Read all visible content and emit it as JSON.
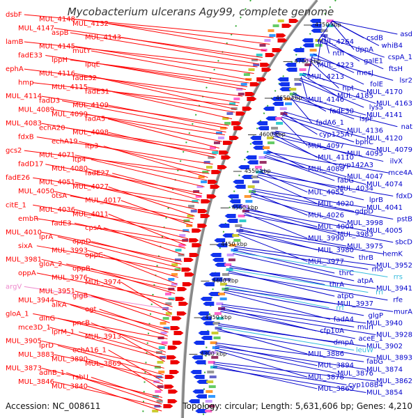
{
  "title": "Mycobacterium ulcerans Agy99, complete genome",
  "footer": {
    "accession": "Accession: NC_008611",
    "summary": "Topology: circular; Length: 5,631,606 bp; Genes: 4,210"
  },
  "colors": {
    "forward_label": "#ff0000",
    "reverse_label": "#0000cc",
    "rna_label_pink": "#ee88cc",
    "rna_label_cyan": "#33bbdd",
    "backbone": "#888888"
  },
  "ticks": [
    "4750 kbp",
    "4700 kbp",
    "4650 kbp",
    "4600 kbp",
    "4550 kbp",
    "4500 kbp",
    "4450 kbp",
    "4400 kbp",
    "4350 kbp",
    "4300 kbp"
  ],
  "left_labels": [
    "dsbF",
    "MUL_4148",
    "MUL_4132",
    "MUL_4147",
    "aspB",
    "MUL_4143",
    "lamB",
    "MUL_4145",
    "mutY",
    "fadE33",
    "lppH",
    "lpqE",
    "ephA",
    "MUL_4116",
    "fadE32",
    "hmp",
    "MUL_4115",
    "fadE31",
    "MUL_4114",
    "fadD3",
    "MUL_4109",
    "MUL_4089",
    "MUL_4099",
    "fadA5",
    "MUL_4083",
    "echA20",
    "MUL_4098",
    "fdxB",
    "echA19",
    "ltp3",
    "gcs2",
    "MUL_4071",
    "ltp4",
    "fadD17",
    "MUL_4080",
    "fadE27",
    "fadE26",
    "MUL_4051",
    "MUL_4027",
    "MUL_4050",
    "otsA",
    "MUL_4017",
    "citE_1",
    "MUL_4036",
    "MUL_4011",
    "embR",
    "fadE3",
    "cpsA",
    "MUL_4010",
    "lprA",
    "oppD",
    "sixA",
    "MUL_3993",
    "oppC",
    "MUL_3981",
    "gloA_2",
    "oppB",
    "oppA",
    "MUL_3976",
    "MUL_3974",
    "argV",
    "MUL_3951",
    "glgB",
    "MUL_3944",
    "alkA",
    "ogt",
    "gloA_1",
    "dinG",
    "pncB",
    "mce3D_1",
    "lprM_1",
    "MUL_3913",
    "MUL_3905",
    "lprD",
    "echA16_1",
    "MUL_3883",
    "MUL_3890",
    "MUL_3869",
    "MUL_3873",
    "adhB_1",
    "rsbU",
    "MUL_3846",
    "MUL_3840"
  ],
  "right_labels": [
    "asd",
    "csdB",
    "MUL_4264",
    "whiB4",
    "dppA",
    "nth",
    "cspA_1",
    "galE1",
    "MUL_4223",
    "ftsH",
    "mesJ",
    "MUL_4213",
    "lsr2",
    "folE",
    "hpt",
    "MUL_4170",
    "MUL_4185",
    "MUL_4146",
    "MUL_4163",
    "lysS",
    "fadE30",
    "MUL_4141",
    "ispF",
    "fadA6_1",
    "nat",
    "MUL_4136",
    "cyp125A7",
    "MUL_4120",
    "bphC",
    "MUL_4097",
    "MUL_4079",
    "MUL_4095",
    "MUL_4110",
    "ilvX",
    "cyp142A3",
    "MUL_4088",
    "mce4A",
    "MUL_4047",
    "fabG",
    "MUL_4074",
    "MUL_4034",
    "MUL_4055",
    "fdxD",
    "lprB",
    "MUL_4020",
    "MUL_4041",
    "gdpD",
    "MUL_4026",
    "pstB",
    "MUL_3998",
    "MUL_4004",
    "MUL_4005",
    "MUL_3983",
    "MUL_3990",
    "sbcD",
    "MUL_3975",
    "MUL_3980",
    "hemK",
    "thrB",
    "MUL_3977",
    "MUL_3952",
    "rho",
    "thrC",
    "rrs",
    "atpA",
    "thrA",
    "MUL_3941",
    "rrl",
    "atpG",
    "rfe",
    "MUL_3937",
    "rrf",
    "murA",
    "glgP",
    "fadA4",
    "MUL_3940",
    "murI",
    "cfp10A",
    "MUL_3928",
    "aceE_1",
    "dmpA",
    "MUL_3902",
    "leuW",
    "MUL_3886",
    "MUL_3893",
    "fabG",
    "MUL_3894",
    "MUL_3874",
    "MUL_3876",
    "MUL_3878",
    "MUL_3862",
    "cyp108B4",
    "MUL_3865",
    "MUL_3854"
  ]
}
